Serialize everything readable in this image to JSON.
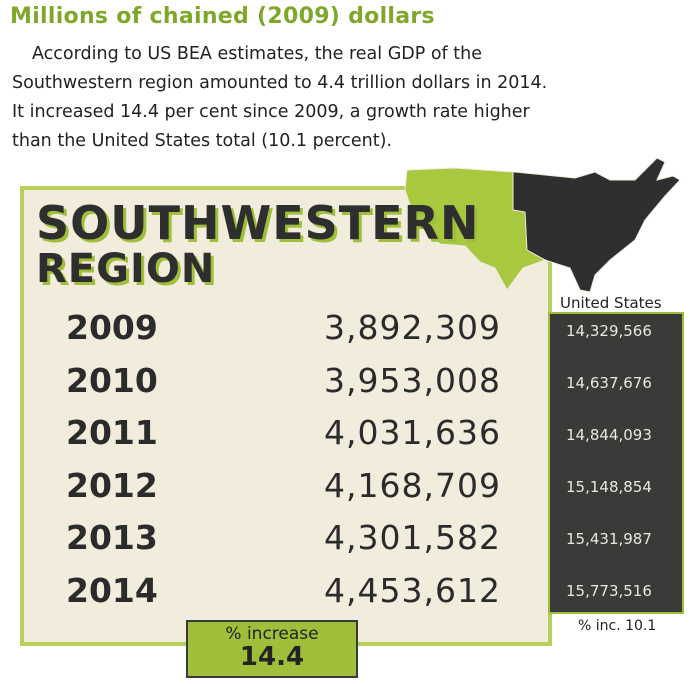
{
  "header": {
    "title": "Millions of chained (2009) dollars",
    "intro": [
      "According to US BEA estimates, the real GDP of the",
      "Southwestern region amounted to 4.4 trillion dollars in 2014.",
      "It increased 14.4 per cent since 2009, a growth rate higher",
      "than the United States total (10.1 percent)."
    ]
  },
  "panel": {
    "title_line1": "SOUTHWESTERN",
    "title_line2": "REGION"
  },
  "table": {
    "us_header": "United States",
    "rows": [
      [
        "2009",
        "3,892,309",
        "14,329,566"
      ],
      [
        "2010",
        "3,953,008",
        "14,637,676"
      ],
      [
        "2011",
        "4,031,636",
        "14,844,093"
      ],
      [
        "2012",
        "4,168,709",
        "15,148,854"
      ],
      [
        "2013",
        "4,301,582",
        "15,431,987"
      ],
      [
        "2014",
        "4,453,612",
        "15,773,516"
      ]
    ],
    "us_footer": "% inc. 10.1"
  },
  "increase": {
    "label": "% increase",
    "value": "14.4"
  }
}
